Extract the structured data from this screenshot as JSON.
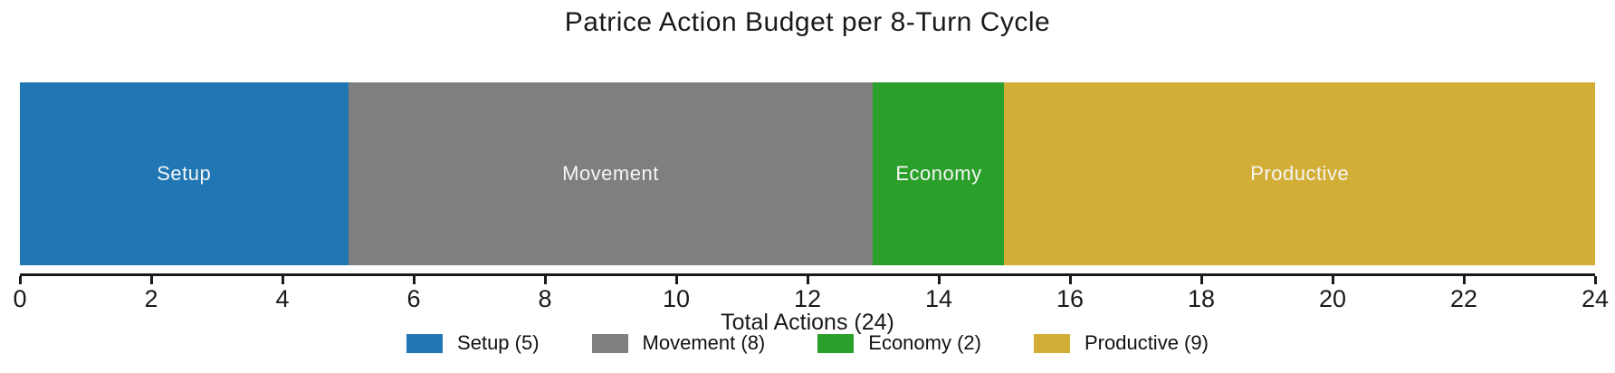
{
  "title": "Patrice Action Budget per 8-Turn Cycle",
  "chart_data": {
    "type": "bar",
    "variant": "horizontal-stacked",
    "title": "Patrice Action Budget per 8-Turn Cycle",
    "total": 24,
    "series": [
      {
        "name": "Setup",
        "value": 5,
        "color": "#2077b4",
        "legend_label": "Setup (5)"
      },
      {
        "name": "Movement",
        "value": 8,
        "color": "#7f7f7f",
        "legend_label": "Movement (8)"
      },
      {
        "name": "Economy",
        "value": 2,
        "color": "#2aa02a",
        "legend_label": "Economy (2)"
      },
      {
        "name": "Productive",
        "value": 9,
        "color": "#d3ae37",
        "legend_label": "Productive (9)"
      }
    ],
    "xlabel": "Total Actions (24)",
    "xlim": [
      0,
      24
    ],
    "xticks": [
      0,
      2,
      4,
      6,
      8,
      10,
      12,
      14,
      16,
      18,
      20,
      22,
      24
    ],
    "grid": false,
    "legend_position": "bottom-center",
    "bar_label_color": "#f5f5f5",
    "axis_color": "#1a1a1a"
  }
}
